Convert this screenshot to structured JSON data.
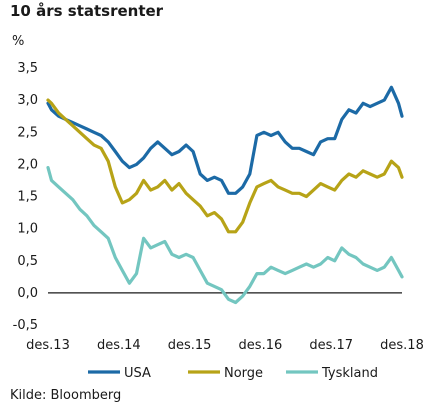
{
  "chart_data": {
    "type": "line",
    "title": "10 års statsrenter",
    "ylabel": "%",
    "source": "Kilde: Bloomberg",
    "ylim": [
      -0.5,
      3.5
    ],
    "xlim": [
      2013.95,
      2018.95
    ],
    "yticks": [
      "3,5",
      "3,0",
      "2,5",
      "2,0",
      "1,5",
      "1,0",
      "0,5",
      "0,0",
      "-0,5"
    ],
    "xticks": [
      "des.13",
      "des.14",
      "des.15",
      "des.16",
      "des.17",
      "des.18"
    ],
    "legend_position": "bottom",
    "grid": false,
    "series": [
      {
        "name": "USA",
        "color": "#1c6aa6",
        "x": [
          2013.95,
          2014.0,
          2014.1,
          2014.2,
          2014.3,
          2014.4,
          2014.5,
          2014.6,
          2014.7,
          2014.8,
          2014.9,
          2015.0,
          2015.1,
          2015.2,
          2015.3,
          2015.4,
          2015.5,
          2015.6,
          2015.7,
          2015.8,
          2015.9,
          2016.0,
          2016.1,
          2016.2,
          2016.3,
          2016.4,
          2016.5,
          2016.6,
          2016.7,
          2016.8,
          2016.9,
          2017.0,
          2017.1,
          2017.2,
          2017.3,
          2017.4,
          2017.5,
          2017.6,
          2017.7,
          2017.8,
          2017.9,
          2018.0,
          2018.1,
          2018.2,
          2018.3,
          2018.4,
          2018.5,
          2018.6,
          2018.7,
          2018.8,
          2018.9,
          2018.95
        ],
        "values": [
          2.95,
          2.85,
          2.75,
          2.7,
          2.65,
          2.6,
          2.55,
          2.5,
          2.45,
          2.35,
          2.2,
          2.05,
          1.95,
          2.0,
          2.1,
          2.25,
          2.35,
          2.25,
          2.15,
          2.2,
          2.3,
          2.2,
          1.85,
          1.75,
          1.8,
          1.75,
          1.55,
          1.55,
          1.65,
          1.85,
          2.45,
          2.5,
          2.45,
          2.5,
          2.35,
          2.25,
          2.25,
          2.2,
          2.15,
          2.35,
          2.4,
          2.4,
          2.7,
          2.85,
          2.8,
          2.95,
          2.9,
          2.95,
          3.0,
          3.2,
          2.95,
          2.75
        ]
      },
      {
        "name": "Norge",
        "color": "#b7a317",
        "x": [
          2013.95,
          2014.0,
          2014.1,
          2014.2,
          2014.3,
          2014.4,
          2014.5,
          2014.6,
          2014.7,
          2014.8,
          2014.9,
          2015.0,
          2015.1,
          2015.2,
          2015.3,
          2015.4,
          2015.5,
          2015.6,
          2015.7,
          2015.8,
          2015.9,
          2016.0,
          2016.1,
          2016.2,
          2016.3,
          2016.4,
          2016.5,
          2016.6,
          2016.7,
          2016.8,
          2016.9,
          2017.0,
          2017.1,
          2017.2,
          2017.3,
          2017.4,
          2017.5,
          2017.6,
          2017.7,
          2017.8,
          2017.9,
          2018.0,
          2018.1,
          2018.2,
          2018.3,
          2018.4,
          2018.5,
          2018.6,
          2018.7,
          2018.8,
          2018.9,
          2018.95
        ],
        "values": [
          3.0,
          2.95,
          2.8,
          2.7,
          2.6,
          2.5,
          2.4,
          2.3,
          2.25,
          2.05,
          1.65,
          1.4,
          1.45,
          1.55,
          1.75,
          1.6,
          1.65,
          1.75,
          1.6,
          1.7,
          1.55,
          1.45,
          1.35,
          1.2,
          1.25,
          1.15,
          0.95,
          0.95,
          1.1,
          1.4,
          1.65,
          1.7,
          1.75,
          1.65,
          1.6,
          1.55,
          1.55,
          1.5,
          1.6,
          1.7,
          1.65,
          1.6,
          1.75,
          1.85,
          1.8,
          1.9,
          1.85,
          1.8,
          1.85,
          2.05,
          1.95,
          1.8
        ]
      },
      {
        "name": "Tyskland",
        "color": "#73c6c0",
        "x": [
          2013.95,
          2014.0,
          2014.1,
          2014.2,
          2014.3,
          2014.4,
          2014.5,
          2014.6,
          2014.7,
          2014.8,
          2014.9,
          2015.0,
          2015.1,
          2015.2,
          2015.3,
          2015.4,
          2015.5,
          2015.6,
          2015.7,
          2015.8,
          2015.9,
          2016.0,
          2016.1,
          2016.2,
          2016.3,
          2016.4,
          2016.5,
          2016.6,
          2016.7,
          2016.8,
          2016.9,
          2017.0,
          2017.1,
          2017.2,
          2017.3,
          2017.4,
          2017.5,
          2017.6,
          2017.7,
          2017.8,
          2017.9,
          2018.0,
          2018.1,
          2018.2,
          2018.3,
          2018.4,
          2018.5,
          2018.6,
          2018.7,
          2018.8,
          2018.9,
          2018.95
        ],
        "values": [
          1.95,
          1.75,
          1.65,
          1.55,
          1.45,
          1.3,
          1.2,
          1.05,
          0.95,
          0.85,
          0.55,
          0.35,
          0.15,
          0.3,
          0.85,
          0.7,
          0.75,
          0.8,
          0.6,
          0.55,
          0.6,
          0.55,
          0.35,
          0.15,
          0.1,
          0.05,
          -0.1,
          -0.15,
          -0.05,
          0.1,
          0.3,
          0.3,
          0.4,
          0.35,
          0.3,
          0.35,
          0.4,
          0.45,
          0.4,
          0.45,
          0.55,
          0.5,
          0.7,
          0.6,
          0.55,
          0.45,
          0.4,
          0.35,
          0.4,
          0.55,
          0.35,
          0.25
        ]
      }
    ]
  }
}
